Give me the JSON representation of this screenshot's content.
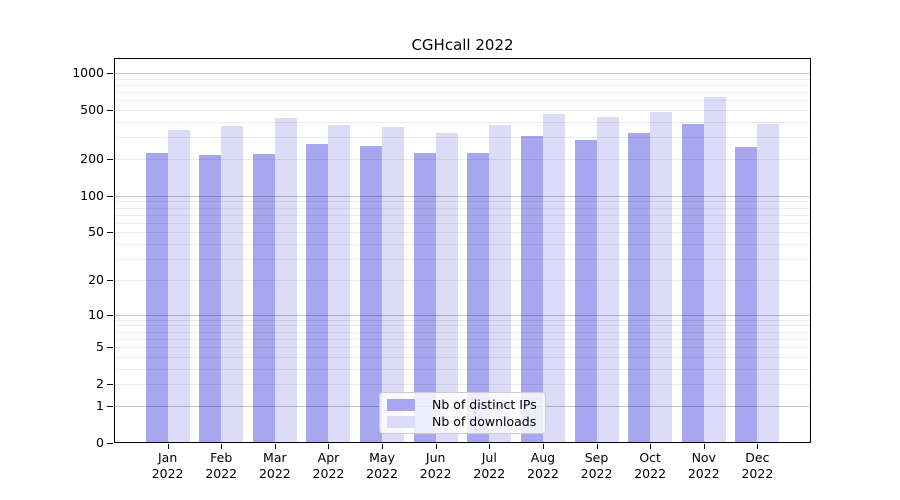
{
  "figure": {
    "background": "#ffffff",
    "axis_color": "#000000"
  },
  "chart_data": {
    "type": "bar",
    "title": "CGHcall 2022",
    "categories": [
      "Jan",
      "Feb",
      "Mar",
      "Apr",
      "May",
      "Jun",
      "Jul",
      "Aug",
      "Sep",
      "Oct",
      "Nov",
      "Dec"
    ],
    "year_label": "2022",
    "series": [
      {
        "name": "Nb of distinct IPs",
        "color": "#a7a7f0",
        "values": [
          220,
          212,
          216,
          260,
          251,
          218,
          220,
          301,
          280,
          320,
          378,
          245
        ]
      },
      {
        "name": "Nb of downloads",
        "color": "#dcdcf8",
        "values": [
          336,
          365,
          421,
          369,
          356,
          318,
          369,
          456,
          430,
          478,
          623,
          376
        ]
      }
    ],
    "xlabel": "",
    "ylabel": "",
    "yscale": "log1p",
    "ylim": [
      0,
      1070
    ],
    "yticks": [
      1000,
      500,
      200,
      100,
      50,
      20,
      10,
      5,
      2,
      1,
      0
    ],
    "ytick_labels": [
      "1000",
      "500",
      "200",
      "100",
      "50",
      "20",
      "10",
      "5",
      "2",
      "1",
      "0"
    ],
    "grid": {
      "major_values": [
        1,
        10,
        100,
        1000
      ],
      "minor_multipliers": [
        2,
        3,
        4,
        5,
        6,
        7,
        8,
        9
      ],
      "minor_color": "#e9e9e9",
      "major_color": "#c6c6c6",
      "on": true
    },
    "legend": {
      "position": "lower-center-inside",
      "entries": [
        "Nb of distinct IPs",
        "Nb of downloads"
      ]
    }
  }
}
